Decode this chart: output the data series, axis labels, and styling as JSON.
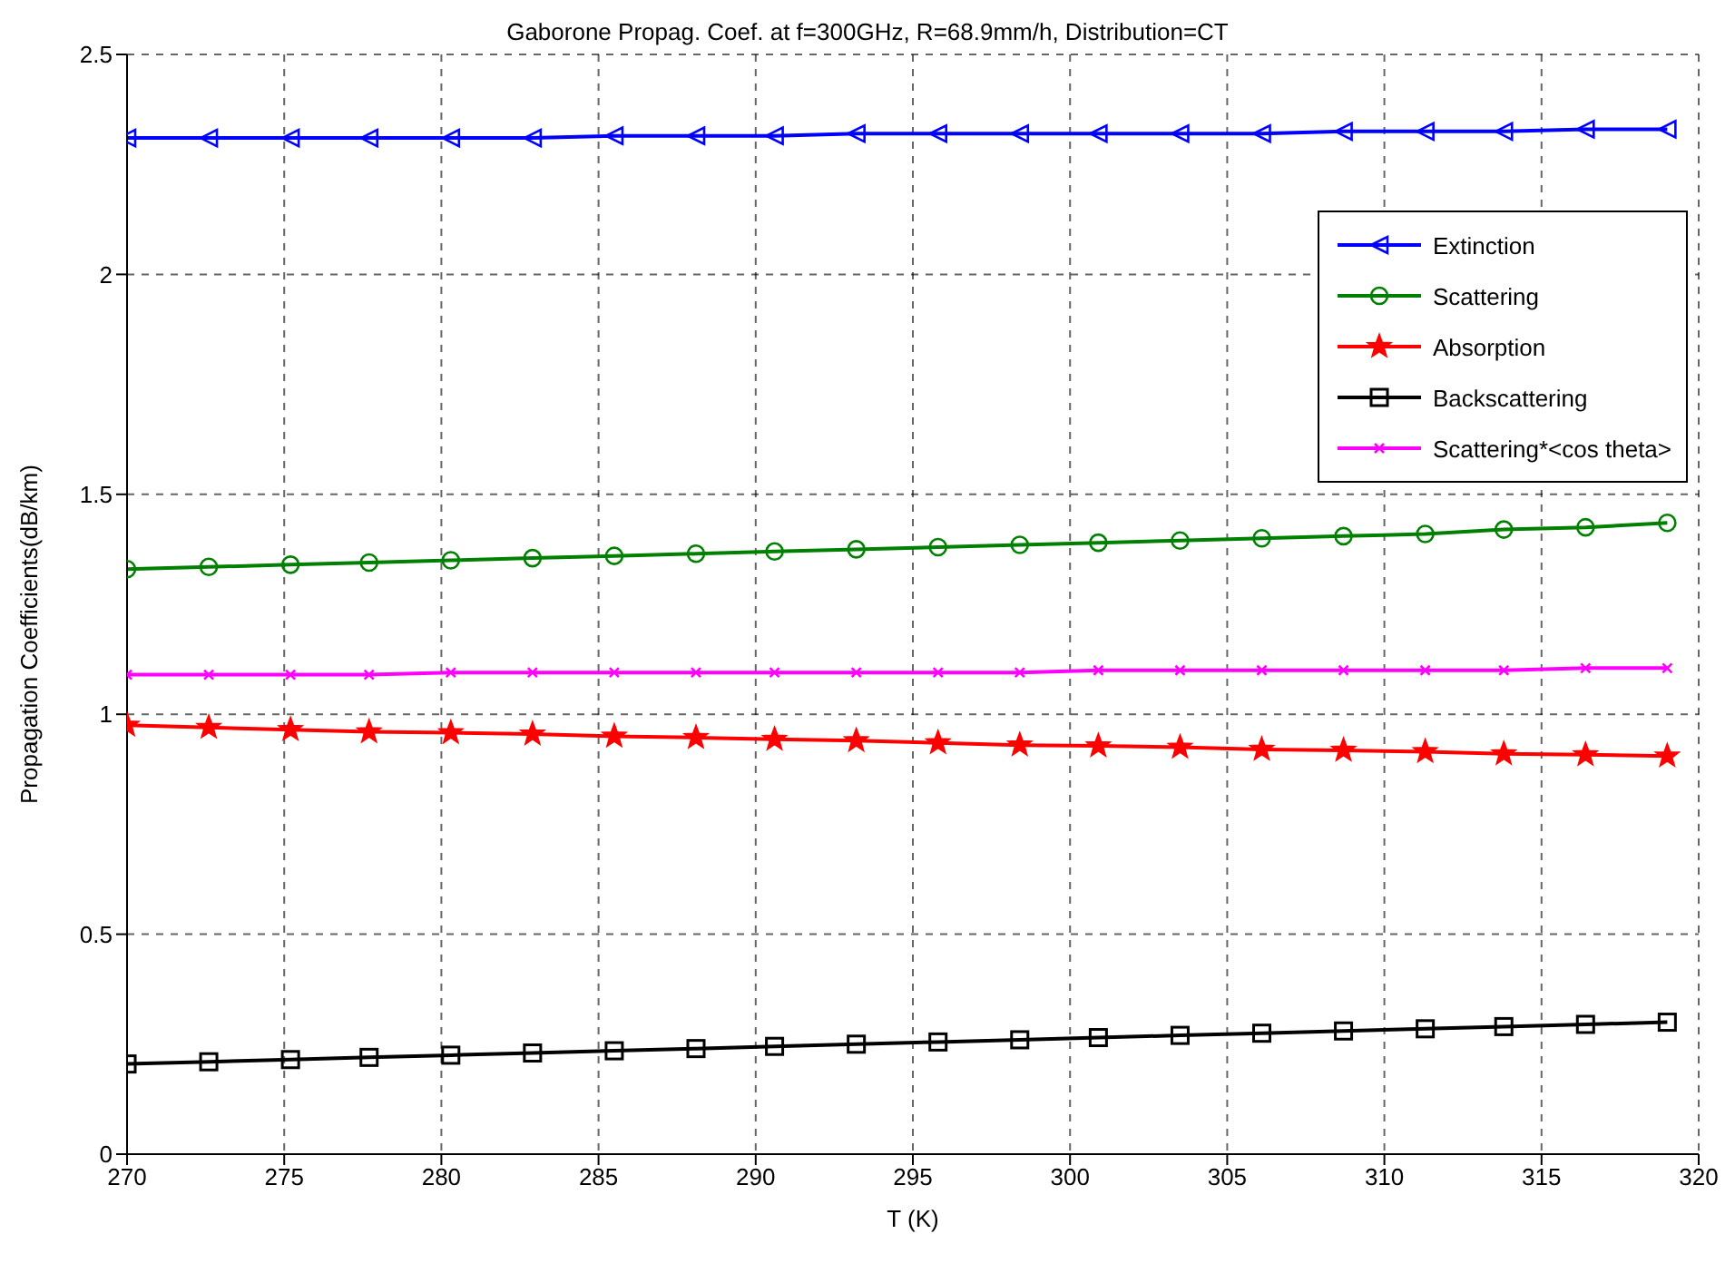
{
  "chart_data": {
    "type": "line",
    "title": "Gaborone Propag. Coef. at f=300GHz, R=68.9mm/h, Distribution=CT",
    "xlabel": "T (K)",
    "ylabel": "Propagation Coefficients(dB/km)",
    "x": [
      270,
      272.6,
      275.2,
      277.7,
      280.3,
      282.9,
      285.5,
      288.1,
      290.6,
      293.2,
      295.8,
      298.4,
      300.9,
      303.5,
      306.1,
      308.7,
      311.3,
      313.8,
      316.4,
      319.0
    ],
    "xlim": [
      270,
      320
    ],
    "xticks": [
      270,
      275,
      280,
      285,
      290,
      295,
      300,
      305,
      310,
      315,
      320
    ],
    "ylim": [
      0,
      2.5
    ],
    "yticks": [
      0,
      0.5,
      1,
      1.5,
      2,
      2.5
    ],
    "grid": true,
    "legend": "top right",
    "line_style": "solid",
    "series": [
      {
        "name": "Extinction",
        "color": "#0000ff",
        "marker": "triangle",
        "values": [
          2.31,
          2.31,
          2.31,
          2.31,
          2.31,
          2.31,
          2.315,
          2.315,
          2.315,
          2.32,
          2.32,
          2.32,
          2.32,
          2.32,
          2.32,
          2.325,
          2.325,
          2.325,
          2.33,
          2.33
        ]
      },
      {
        "name": "Scattering",
        "color": "#008000",
        "marker": "circle",
        "values": [
          1.33,
          1.335,
          1.34,
          1.345,
          1.35,
          1.355,
          1.36,
          1.365,
          1.37,
          1.375,
          1.38,
          1.385,
          1.39,
          1.395,
          1.4,
          1.405,
          1.41,
          1.42,
          1.425,
          1.435
        ]
      },
      {
        "name": "Absorption",
        "color": "#ff0000",
        "marker": "star",
        "values": [
          0.975,
          0.97,
          0.965,
          0.96,
          0.958,
          0.955,
          0.95,
          0.947,
          0.943,
          0.94,
          0.935,
          0.93,
          0.928,
          0.925,
          0.92,
          0.918,
          0.915,
          0.91,
          0.908,
          0.905
        ]
      },
      {
        "name": "Backscattering",
        "color": "#000000",
        "marker": "square",
        "values": [
          0.205,
          0.21,
          0.215,
          0.22,
          0.225,
          0.23,
          0.235,
          0.24,
          0.245,
          0.25,
          0.255,
          0.26,
          0.265,
          0.27,
          0.275,
          0.28,
          0.285,
          0.29,
          0.295,
          0.3
        ]
      },
      {
        "name": "Scattering*<cos theta>",
        "color": "#ff00ff",
        "marker": "cross",
        "values": [
          1.09,
          1.09,
          1.09,
          1.09,
          1.095,
          1.095,
          1.095,
          1.095,
          1.095,
          1.095,
          1.095,
          1.095,
          1.1,
          1.1,
          1.1,
          1.1,
          1.1,
          1.1,
          1.105,
          1.105
        ]
      }
    ]
  }
}
